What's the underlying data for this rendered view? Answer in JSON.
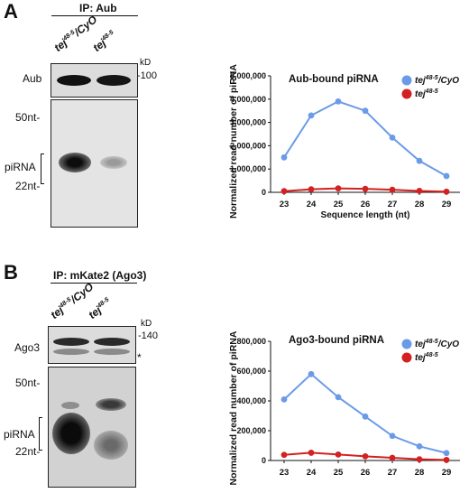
{
  "panel_a": {
    "letter": "A",
    "ip_label": "IP: Aub",
    "lanes": [
      {
        "main": "tej",
        "sup": "48-5",
        "suffix": "/CyO"
      },
      {
        "main": "tej",
        "sup": "48-5",
        "suffix": ""
      }
    ],
    "western_label": "Aub",
    "kd_label": "kD",
    "mw_marker": "-100",
    "nt_top": "50nt-",
    "pirna_label": "piRNA",
    "nt_bottom": "22nt-"
  },
  "panel_b": {
    "letter": "B",
    "ip_label": "IP: mKate2 (Ago3)",
    "lanes": [
      {
        "main": "tej",
        "sup": "48-5",
        "suffix": "/CyO"
      },
      {
        "main": "tej",
        "sup": "48-5",
        "suffix": ""
      }
    ],
    "western_label": "Ago3",
    "kd_label": "kD",
    "mw_marker": "-140",
    "asterisk": "*",
    "nt_top": "50nt-",
    "pirna_label": "piRNA",
    "nt_bottom": "22nt-"
  },
  "chart_data": [
    {
      "type": "line",
      "title": "Aub-bound piRNA",
      "xlabel": "Sequence length (nt)",
      "ylabel": "Normalized read number of piRNA",
      "x": [
        23,
        24,
        25,
        26,
        27,
        28,
        29
      ],
      "ylim": [
        0,
        5000000
      ],
      "yticks": [
        "0",
        "1,000,000",
        "2,000,000",
        "3,000,000",
        "4,000,000",
        "5,000,000"
      ],
      "legend": "top-right",
      "series": [
        {
          "name": "tej48-5/CyO",
          "color": "#6b9be8",
          "values": [
            1500000,
            3300000,
            3900000,
            3500000,
            2350000,
            1350000,
            700000
          ]
        },
        {
          "name": "tej48-5",
          "color": "#d42020",
          "values": [
            50000,
            130000,
            170000,
            150000,
            110000,
            60000,
            30000
          ]
        }
      ]
    },
    {
      "type": "line",
      "title": "Ago3-bound piRNA",
      "xlabel": "",
      "ylabel": "Normalized read number of piRNA",
      "x": [
        23,
        24,
        25,
        26,
        27,
        28,
        29
      ],
      "ylim": [
        0,
        800000
      ],
      "yticks": [
        "0",
        "200,000",
        "400,000",
        "600,000",
        "800,000"
      ],
      "legend": "top-right",
      "series": [
        {
          "name": "tej48-5/CyO",
          "color": "#6b9be8",
          "values": [
            410000,
            580000,
            425000,
            295000,
            165000,
            95000,
            50000
          ]
        },
        {
          "name": "tej48-5",
          "color": "#d42020",
          "values": [
            38000,
            52000,
            40000,
            28000,
            18000,
            8000,
            4000
          ]
        }
      ]
    }
  ]
}
